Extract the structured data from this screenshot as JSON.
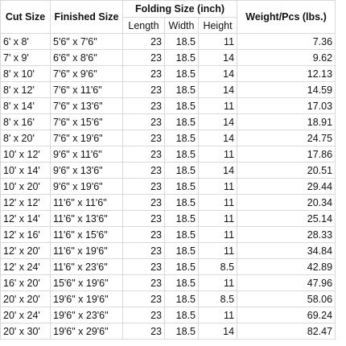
{
  "table": {
    "header": [
      "Cut Size",
      "Finished Size",
      "Folding Size (inch)",
      "Weight/Pcs (lbs.)"
    ],
    "subheader": [
      "Length",
      "Width",
      "Height"
    ],
    "rows": [
      [
        "6' x 8'",
        "5'6\" x 7'6\"",
        23,
        18.5,
        11,
        7.36
      ],
      [
        "7' x 9'",
        "6'6\" x 8'6\"",
        23,
        18.5,
        14,
        9.62
      ],
      [
        "8' x 10'",
        "7'6\" x 9'6\"",
        23,
        18.5,
        14,
        12.13
      ],
      [
        "8' x 12'",
        "7'6\" x 11'6\"",
        23,
        18.5,
        14,
        14.59
      ],
      [
        "8' x 14'",
        "7'6\" x 13'6\"",
        23,
        18.5,
        11,
        17.03
      ],
      [
        "8' x 16'",
        "7'6\" x 15'6\"",
        23,
        18.5,
        14,
        18.91
      ],
      [
        "8' x 20'",
        "7'6\" x 19'6\"",
        23,
        18.5,
        14,
        24.75
      ],
      [
        "10' x 12'",
        "9'6\" x 11'6\"",
        23,
        18.5,
        11,
        17.86
      ],
      [
        "10' x 14'",
        "9'6\" x 13'6\"",
        23,
        18.5,
        14,
        20.51
      ],
      [
        "10' x 20'",
        "9'6\" x 19'6\"",
        23,
        18.5,
        11,
        29.44
      ],
      [
        "12' x 12'",
        "11'6\" x 11'6\"",
        23,
        18.5,
        11,
        20.34
      ],
      [
        "12' x 14'",
        "11'6\" x 13'6\"",
        23,
        18.5,
        11,
        25.14
      ],
      [
        "12' x 16'",
        "11'6\" x 15'6\"",
        23,
        18.5,
        11,
        28.33
      ],
      [
        "12' x 20'",
        "11'6\" x 19'6\"",
        23,
        18.5,
        11,
        34.84
      ],
      [
        "12' x 24'",
        "11'6\" x 23'6\"",
        23,
        18.5,
        8.5,
        42.89
      ],
      [
        "16' x 20'",
        "15'6\" x 19'6\"",
        23,
        18.5,
        11,
        47.96
      ],
      [
        "20' x 20'",
        "19'6\" x 19'6\"",
        23,
        18.5,
        8.5,
        58.06
      ],
      [
        "20' x 24'",
        "19'6\" x 23'6\"",
        23,
        18.5,
        11,
        69.24
      ],
      [
        "20' x 30'",
        "19'6\" x 29'6\"",
        23,
        18.5,
        14,
        82.47
      ]
    ]
  }
}
